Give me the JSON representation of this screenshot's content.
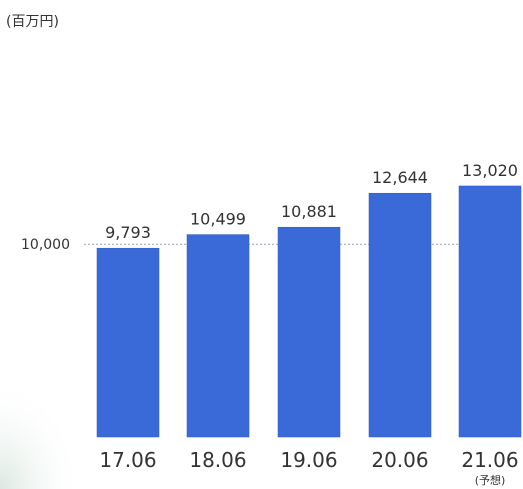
{
  "chart_data": {
    "type": "bar",
    "unit_label": "(百万円)",
    "categories": [
      "17.06",
      "18.06",
      "19.06",
      "20.06",
      "21.06"
    ],
    "category_notes": [
      "",
      "",
      "",
      "",
      "(予想)"
    ],
    "values": [
      9793,
      10499,
      10881,
      12644,
      13020
    ],
    "value_labels": [
      "9,793",
      "10,499",
      "10,881",
      "12,644",
      "13,020"
    ],
    "reference_line": {
      "value": 10000,
      "label": "10,000"
    },
    "grid": false,
    "colors": {
      "bar": "#3a6ad8",
      "bar_edge": "#2e57bf",
      "text": "#333333",
      "ref_line": "#9aa3b5"
    }
  }
}
